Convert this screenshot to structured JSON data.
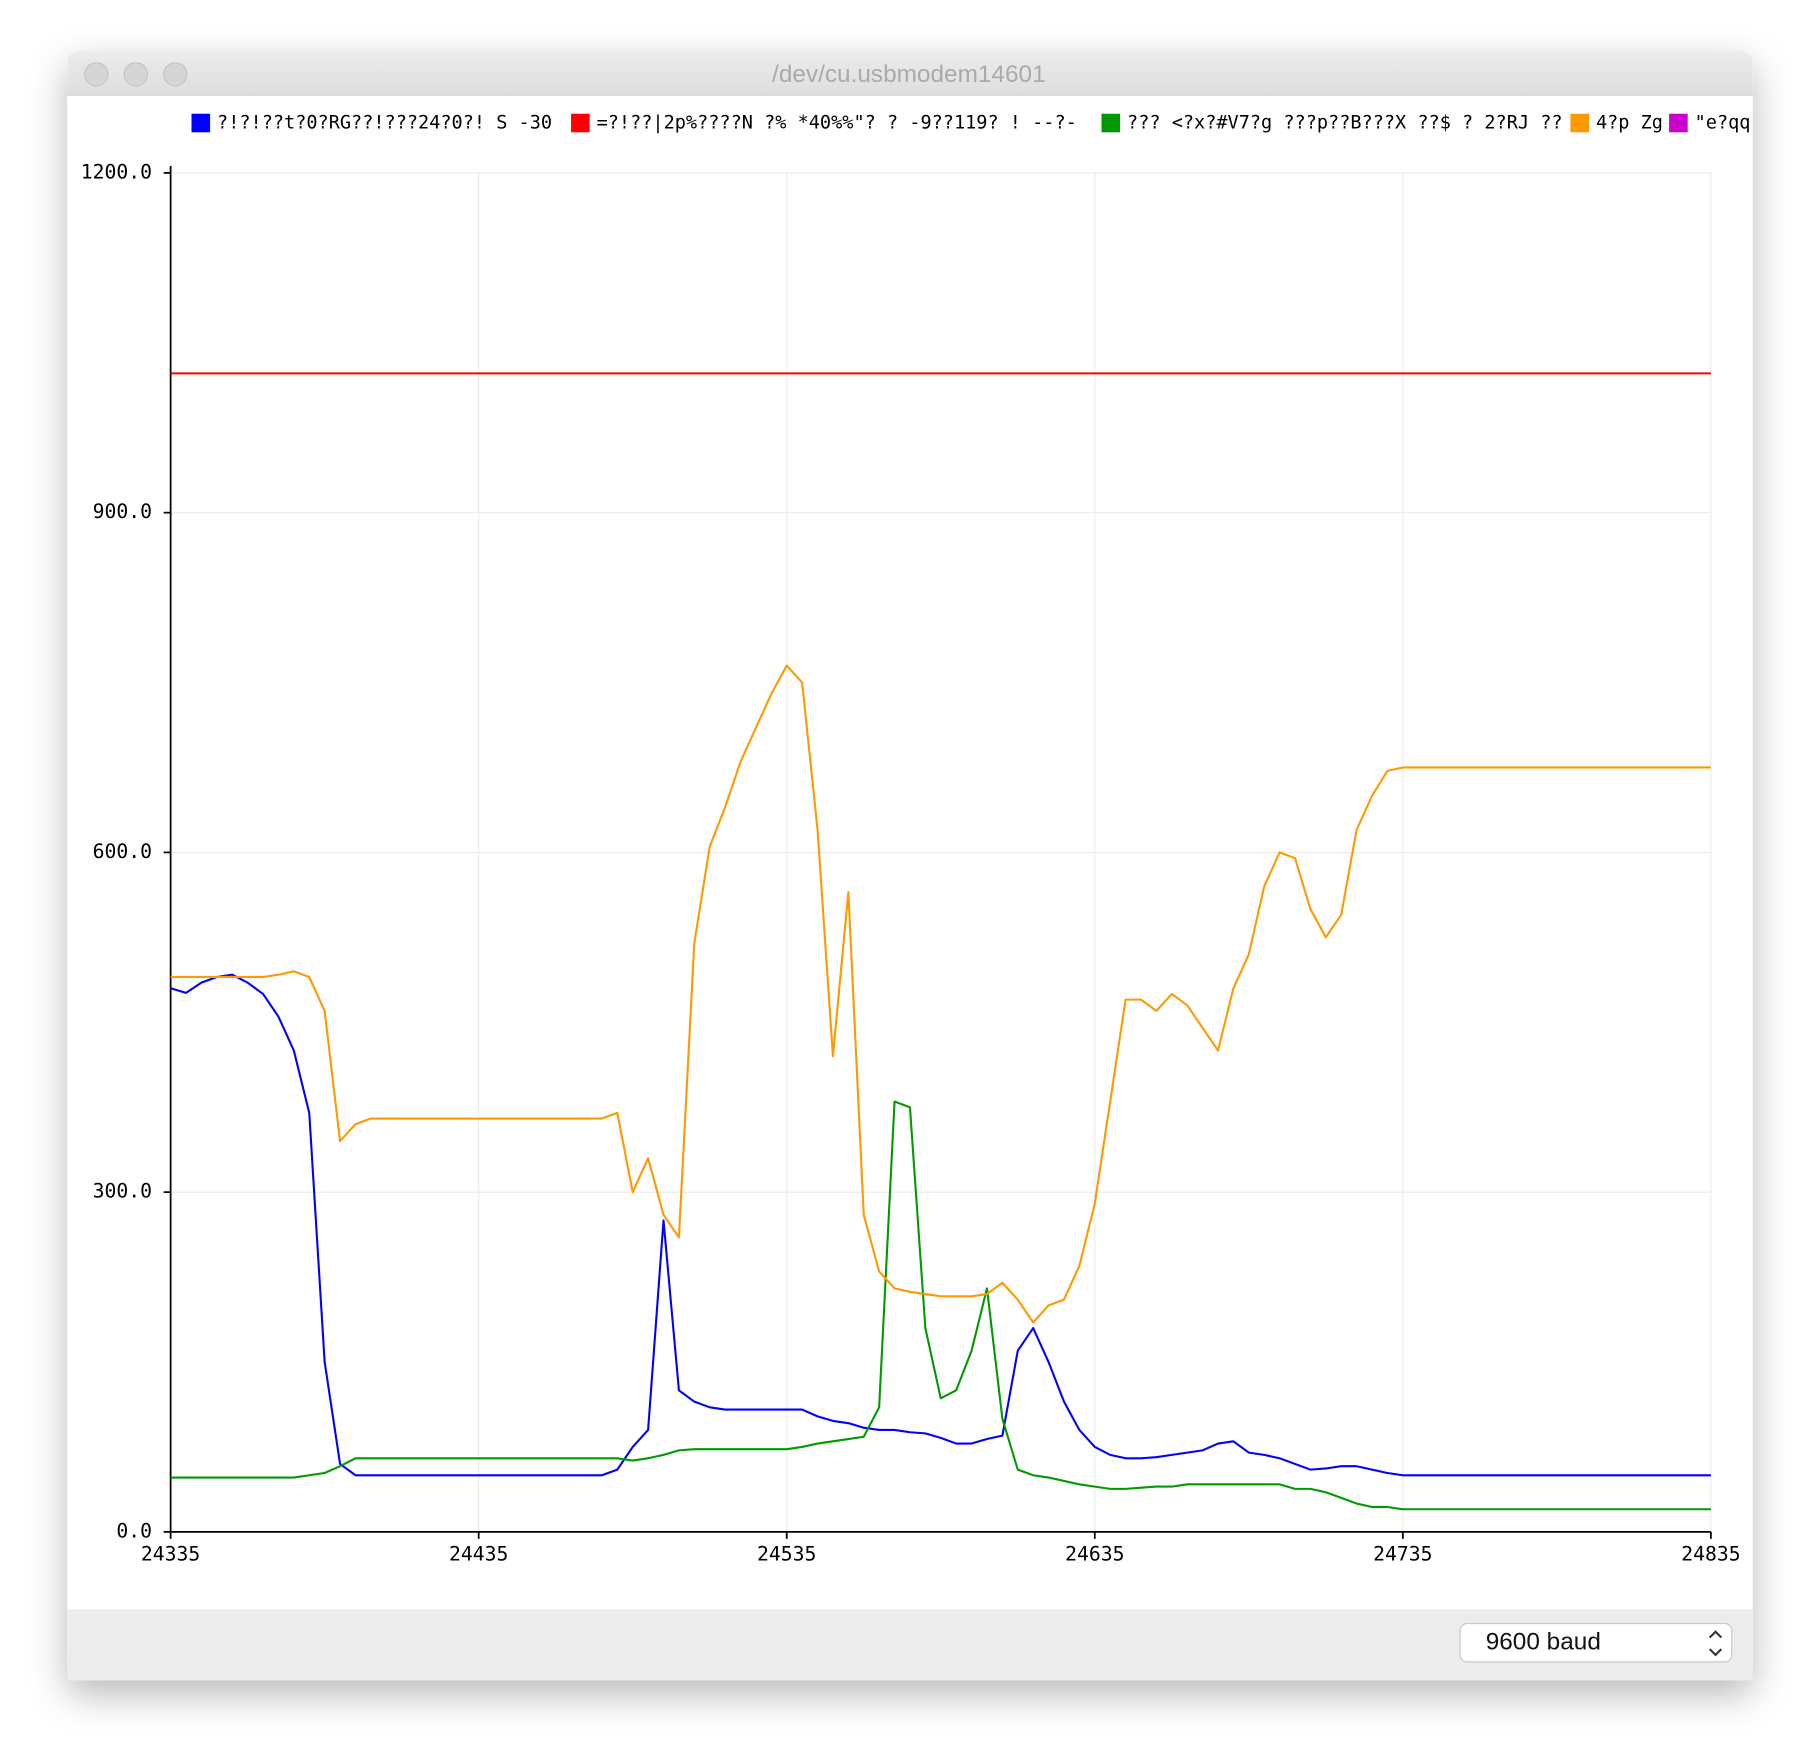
{
  "window": {
    "title": "/dev/cu.usbmodem14601"
  },
  "chart_data": {
    "type": "line",
    "x": [
      24335,
      24340,
      24345,
      24350,
      24355,
      24360,
      24365,
      24370,
      24375,
      24380,
      24385,
      24390,
      24395,
      24400,
      24405,
      24410,
      24415,
      24420,
      24425,
      24430,
      24435,
      24440,
      24445,
      24450,
      24455,
      24460,
      24465,
      24470,
      24475,
      24480,
      24485,
      24490,
      24495,
      24500,
      24505,
      24510,
      24515,
      24520,
      24525,
      24530,
      24535,
      24540,
      24545,
      24550,
      24555,
      24560,
      24565,
      24570,
      24575,
      24580,
      24585,
      24590,
      24595,
      24600,
      24605,
      24610,
      24615,
      24620,
      24625,
      24630,
      24635,
      24640,
      24645,
      24650,
      24655,
      24660,
      24665,
      24670,
      24675,
      24680,
      24685,
      24690,
      24695,
      24700,
      24705,
      24710,
      24715,
      24720,
      24725,
      24730,
      24735,
      24740,
      24745,
      24750,
      24755,
      24760,
      24765,
      24770,
      24775,
      24780,
      24785,
      24790,
      24795,
      24800,
      24805,
      24810,
      24815,
      24820,
      24825,
      24830,
      24835
    ],
    "series": [
      {
        "name": "?!?!??t?0?RG??!???24?0?! S -30",
        "color": "#0000ff",
        "values": [
          480,
          476,
          485,
          490,
          492,
          485,
          475,
          455,
          425,
          370,
          150,
          60,
          50,
          50,
          50,
          50,
          50,
          50,
          50,
          50,
          50,
          50,
          50,
          50,
          50,
          50,
          50,
          50,
          50,
          55,
          75,
          90,
          275,
          125,
          115,
          110,
          108,
          108,
          108,
          108,
          108,
          108,
          102,
          98,
          96,
          92,
          90,
          90,
          88,
          87,
          83,
          78,
          78,
          82,
          85,
          160,
          180,
          150,
          115,
          90,
          75,
          68,
          65,
          65,
          66,
          68,
          70,
          72,
          78,
          80,
          70,
          68,
          65,
          60,
          55,
          56,
          58,
          58,
          55,
          52,
          50,
          50,
          50,
          50,
          50,
          50,
          50,
          50,
          50,
          50,
          50,
          50,
          50,
          50,
          50,
          50,
          50,
          50,
          50,
          50,
          50
        ]
      },
      {
        "name": "=?!??|2p%????N ?% *40%%\"?  ? -9??119? ! --?-",
        "color": "#ff0000",
        "values": [
          1023,
          1023,
          1023,
          1023,
          1023,
          1023,
          1023,
          1023,
          1023,
          1023,
          1023,
          1023,
          1023,
          1023,
          1023,
          1023,
          1023,
          1023,
          1023,
          1023,
          1023,
          1023,
          1023,
          1023,
          1023,
          1023,
          1023,
          1023,
          1023,
          1023,
          1023,
          1023,
          1023,
          1023,
          1023,
          1023,
          1023,
          1023,
          1023,
          1023,
          1023,
          1023,
          1023,
          1023,
          1023,
          1023,
          1023,
          1023,
          1023,
          1023,
          1023,
          1023,
          1023,
          1023,
          1023,
          1023,
          1023,
          1023,
          1023,
          1023,
          1023,
          1023,
          1023,
          1023,
          1023,
          1023,
          1023,
          1023,
          1023,
          1023,
          1023,
          1023,
          1023,
          1023,
          1023,
          1023,
          1023,
          1023,
          1023,
          1023,
          1023,
          1023,
          1023,
          1023,
          1023,
          1023,
          1023,
          1023,
          1023,
          1023,
          1023,
          1023,
          1023,
          1023,
          1023,
          1023,
          1023,
          1023,
          1023,
          1023,
          1023
        ]
      },
      {
        "name": "??? <?x?#V7?g ???p??B???X ??$ ? 2?RJ ??",
        "color": "#009900",
        "values": [
          48,
          48,
          48,
          48,
          48,
          48,
          48,
          48,
          48,
          50,
          52,
          58,
          65,
          65,
          65,
          65,
          65,
          65,
          65,
          65,
          65,
          65,
          65,
          65,
          65,
          65,
          65,
          65,
          65,
          65,
          63,
          65,
          68,
          72,
          73,
          73,
          73,
          73,
          73,
          73,
          73,
          75,
          78,
          80,
          82,
          84,
          110,
          380,
          375,
          180,
          118,
          125,
          160,
          215,
          100,
          55,
          50,
          48,
          45,
          42,
          40,
          38,
          38,
          39,
          40,
          40,
          42,
          42,
          42,
          42,
          42,
          42,
          42,
          38,
          38,
          35,
          30,
          25,
          22,
          22,
          20,
          20,
          20,
          20,
          20,
          20,
          20,
          20,
          20,
          20,
          20,
          20,
          20,
          20,
          20,
          20,
          20,
          20,
          20,
          20,
          20
        ]
      },
      {
        "name": "4?p Zg",
        "color": "#ff9900",
        "values": [
          490,
          490,
          490,
          490,
          490,
          490,
          490,
          492,
          495,
          490,
          460,
          345,
          360,
          365,
          365,
          365,
          365,
          365,
          365,
          365,
          365,
          365,
          365,
          365,
          365,
          365,
          365,
          365,
          365,
          370,
          300,
          330,
          280,
          260,
          520,
          605,
          640,
          680,
          710,
          740,
          765,
          750,
          620,
          420,
          565,
          280,
          230,
          215,
          212,
          210,
          208,
          208,
          208,
          210,
          220,
          205,
          185,
          200,
          205,
          235,
          290,
          380,
          470,
          470,
          460,
          475,
          465,
          445,
          425,
          480,
          510,
          570,
          600,
          595,
          550,
          525,
          545,
          620,
          650,
          672,
          675,
          675,
          675,
          675,
          675,
          675,
          675,
          675,
          675,
          675,
          675,
          675,
          675,
          675,
          675,
          675,
          675,
          675,
          675,
          675,
          675
        ]
      },
      {
        "name": "\"e?qq",
        "color": "#cc00cc",
        "values": [
          null,
          null,
          null,
          null,
          null,
          null,
          null,
          null,
          null,
          null,
          null,
          null,
          null,
          null,
          null,
          null,
          null,
          null,
          null,
          null,
          null,
          null,
          null,
          null,
          null,
          null,
          null,
          null,
          null,
          null,
          null,
          null,
          null,
          null,
          null,
          null,
          null,
          null,
          null,
          null,
          null,
          null,
          null,
          null,
          null,
          null,
          null,
          null,
          null,
          null,
          null,
          null,
          null,
          null,
          null,
          null,
          null,
          null,
          null,
          null,
          null,
          null,
          null,
          null,
          null,
          null,
          null,
          null,
          null,
          null,
          null,
          null,
          null,
          null,
          null,
          null,
          null,
          null,
          null,
          null,
          null,
          null,
          null,
          null,
          null,
          null,
          null,
          null,
          null,
          null,
          null,
          null,
          null,
          null,
          null,
          null,
          null,
          null,
          null,
          null,
          null
        ]
      }
    ],
    "xlim": [
      24335,
      24835
    ],
    "xticks": [
      24335,
      24435,
      24535,
      24635,
      24735,
      24835
    ],
    "ylim": [
      0,
      1200
    ],
    "yticks": [
      {
        "value": 0,
        "label": "0.0"
      },
      {
        "value": 300,
        "label": "300.0"
      },
      {
        "value": 600,
        "label": "600.0"
      },
      {
        "value": 900,
        "label": "900.0"
      },
      {
        "value": 1200,
        "label": "1200.0"
      }
    ],
    "grid": true
  },
  "baud": {
    "selected": "9600 baud"
  }
}
